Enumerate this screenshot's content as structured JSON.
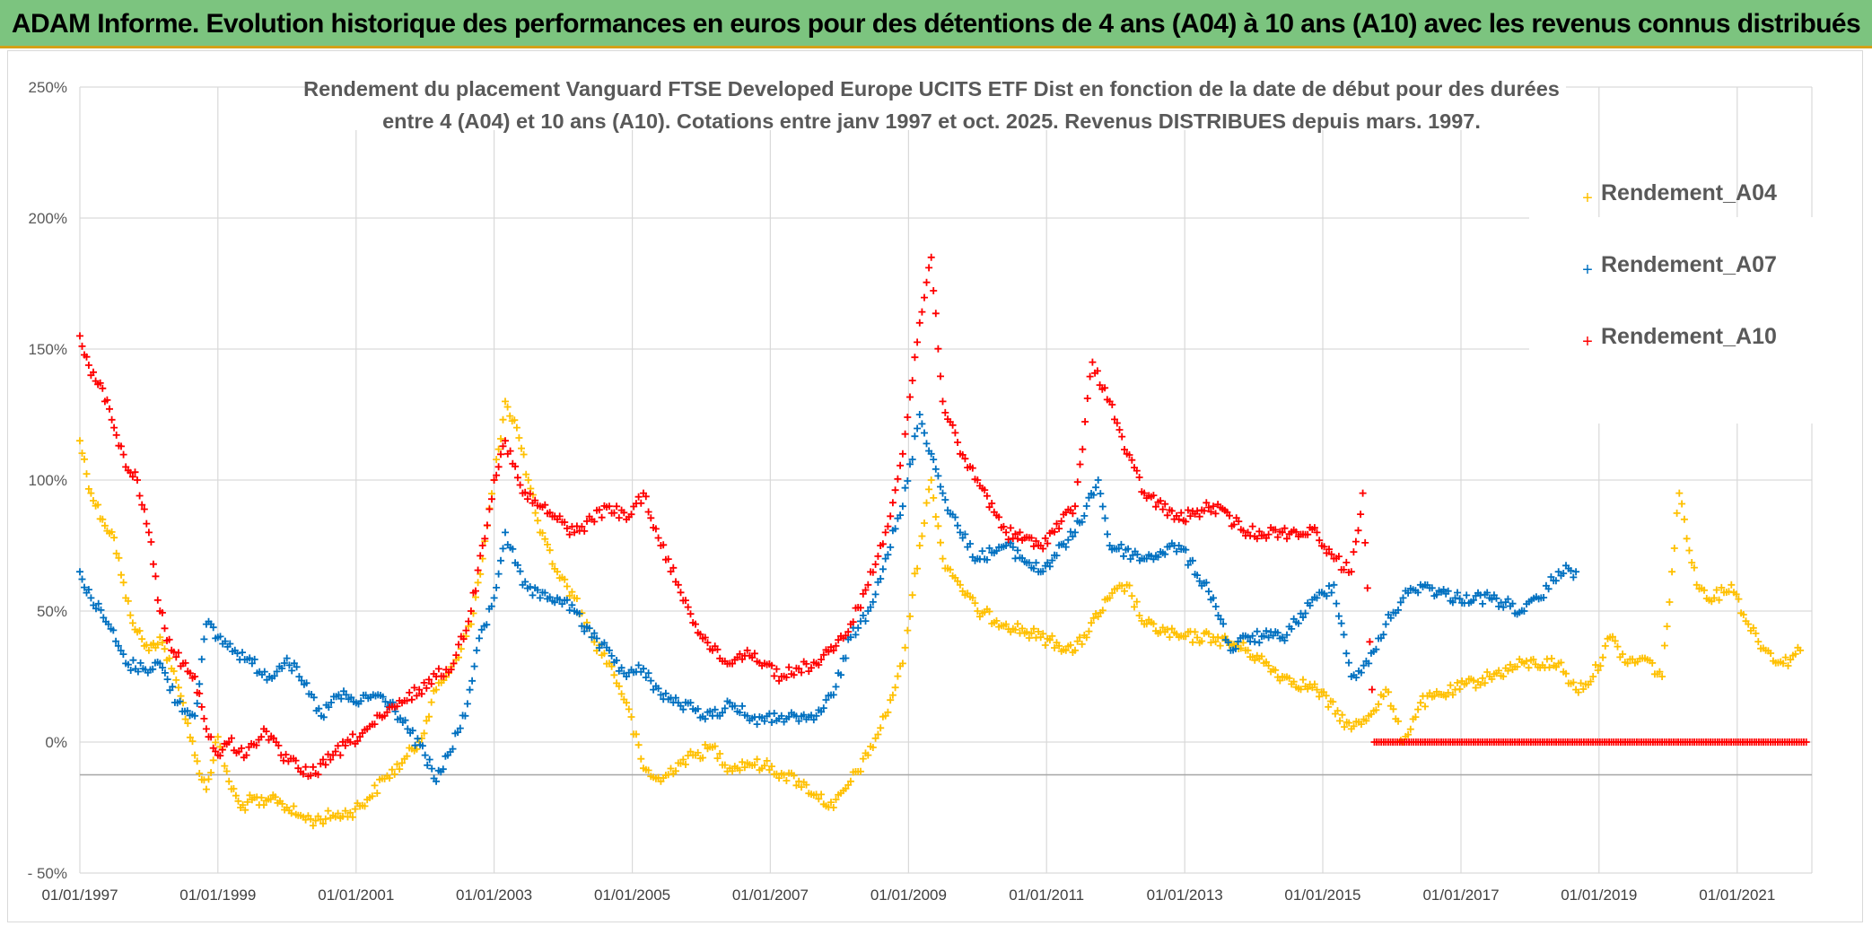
{
  "header": {
    "title": "ADAM Informe. Evolution historique des performances en euros pour des détentions de 4 ans (A04) à 10 ans (A10) avec les revenus connus distribués"
  },
  "chart_data": {
    "type": "scatter",
    "subtitle_lines": [
      "Rendement du placement Vanguard FTSE Developed Europe UCITS ETF Dist en fonction de la date de début pour des durées",
      "entre 4 (A04) et 10 ans (A10). Cotations entre janv 1997 et oct. 2025. Revenus DISTRIBUES depuis mars. 1997."
    ],
    "xlabel": "",
    "ylabel": "",
    "x_range": [
      "1997-01-01",
      "2022-01-31"
    ],
    "ylim": [
      -50,
      250
    ],
    "y_ticks": [
      "250%",
      "200%",
      "150%",
      "100%",
      "50%",
      "0%",
      "- 50%"
    ],
    "x_ticks": [
      "01/01/1997",
      "01/01/1999",
      "01/01/2001",
      "01/01/2003",
      "01/01/2005",
      "01/01/2007",
      "01/01/2009",
      "01/01/2011",
      "01/01/2013",
      "01/01/2015",
      "01/01/2017",
      "01/01/2019",
      "01/01/2021"
    ],
    "grid": true,
    "marker": "+",
    "legend_position": "right",
    "series": [
      {
        "name": "Rendement_A04",
        "color": "#ffc000",
        "points": [
          [
            "1997-01-01",
            115
          ],
          [
            "1997-03-01",
            95
          ],
          [
            "1997-05-01",
            85
          ],
          [
            "1997-07-01",
            78
          ],
          [
            "1997-09-01",
            55
          ],
          [
            "1997-11-01",
            42
          ],
          [
            "1998-01-01",
            35
          ],
          [
            "1998-03-01",
            40
          ],
          [
            "1998-05-01",
            28
          ],
          [
            "1998-07-01",
            15
          ],
          [
            "1998-09-01",
            -5
          ],
          [
            "1998-11-01",
            -18
          ],
          [
            "1999-01-01",
            2
          ],
          [
            "1999-03-01",
            -15
          ],
          [
            "1999-05-01",
            -25
          ],
          [
            "1999-07-01",
            -22
          ],
          [
            "1999-09-01",
            -24
          ],
          [
            "1999-11-01",
            -21
          ],
          [
            "2000-01-01",
            -25
          ],
          [
            "2000-03-01",
            -28
          ],
          [
            "2000-06-01",
            -30
          ],
          [
            "2000-09-01",
            -28
          ],
          [
            "2000-12-01",
            -27
          ],
          [
            "2001-03-01",
            -22
          ],
          [
            "2001-06-01",
            -14
          ],
          [
            "2001-09-01",
            -8
          ],
          [
            "2001-12-01",
            0
          ],
          [
            "2002-03-01",
            20
          ],
          [
            "2002-06-01",
            30
          ],
          [
            "2002-09-01",
            45
          ],
          [
            "2002-11-01",
            70
          ],
          [
            "2003-01-01",
            100
          ],
          [
            "2003-03-01",
            130
          ],
          [
            "2003-05-01",
            120
          ],
          [
            "2003-07-01",
            100
          ],
          [
            "2003-09-01",
            80
          ],
          [
            "2003-12-01",
            65
          ],
          [
            "2004-03-01",
            55
          ],
          [
            "2004-06-01",
            40
          ],
          [
            "2004-09-01",
            30
          ],
          [
            "2004-12-01",
            15
          ],
          [
            "2005-03-01",
            -10
          ],
          [
            "2005-06-01",
            -15
          ],
          [
            "2005-09-01",
            -8
          ],
          [
            "2005-12-01",
            -5
          ],
          [
            "2006-03-01",
            -2
          ],
          [
            "2006-06-01",
            -10
          ],
          [
            "2006-09-01",
            -8
          ],
          [
            "2006-12-01",
            -9
          ],
          [
            "2007-03-01",
            -12
          ],
          [
            "2007-06-01",
            -15
          ],
          [
            "2007-09-01",
            -20
          ],
          [
            "2007-12-01",
            -25
          ],
          [
            "2008-03-01",
            -15
          ],
          [
            "2008-06-01",
            -5
          ],
          [
            "2008-09-01",
            10
          ],
          [
            "2008-12-01",
            30
          ],
          [
            "2009-03-01",
            75
          ],
          [
            "2009-05-01",
            100
          ],
          [
            "2009-07-01",
            70
          ],
          [
            "2009-10-01",
            60
          ],
          [
            "2010-01-01",
            50
          ],
          [
            "2010-06-01",
            45
          ],
          [
            "2010-12-01",
            40
          ],
          [
            "2011-06-01",
            35
          ],
          [
            "2011-12-01",
            55
          ],
          [
            "2012-03-01",
            60
          ],
          [
            "2012-06-01",
            45
          ],
          [
            "2012-12-01",
            40
          ],
          [
            "2013-06-01",
            40
          ],
          [
            "2013-12-01",
            35
          ],
          [
            "2014-06-01",
            25
          ],
          [
            "2014-12-01",
            20
          ],
          [
            "2015-06-01",
            5
          ],
          [
            "2015-09-01",
            10
          ],
          [
            "2015-12-01",
            20
          ],
          [
            "2016-03-01",
            0
          ],
          [
            "2016-06-01",
            15
          ],
          [
            "2016-12-01",
            20
          ],
          [
            "2017-06-01",
            25
          ],
          [
            "2017-12-01",
            30
          ],
          [
            "2018-06-01",
            30
          ],
          [
            "2018-09-01",
            20
          ],
          [
            "2018-12-01",
            25
          ],
          [
            "2019-03-01",
            40
          ],
          [
            "2019-06-01",
            30
          ],
          [
            "2019-09-01",
            32
          ],
          [
            "2019-12-01",
            25
          ],
          [
            "2020-03-01",
            95
          ],
          [
            "2020-06-01",
            60
          ],
          [
            "2020-09-01",
            55
          ],
          [
            "2020-12-01",
            60
          ],
          [
            "2021-03-01",
            45
          ],
          [
            "2021-06-01",
            35
          ],
          [
            "2021-09-01",
            30
          ],
          [
            "2021-12-01",
            35
          ]
        ]
      },
      {
        "name": "Rendement_A07",
        "color": "#0070c0",
        "points": [
          [
            "1997-01-01",
            65
          ],
          [
            "1997-03-01",
            55
          ],
          [
            "1997-06-01",
            45
          ],
          [
            "1997-09-01",
            30
          ],
          [
            "1997-12-01",
            28
          ],
          [
            "1998-03-01",
            30
          ],
          [
            "1998-06-01",
            15
          ],
          [
            "1998-09-01",
            10
          ],
          [
            "1998-11-01",
            45
          ],
          [
            "1999-01-01",
            40
          ],
          [
            "1999-04-01",
            35
          ],
          [
            "1999-07-01",
            30
          ],
          [
            "1999-10-01",
            25
          ],
          [
            "2000-01-01",
            32
          ],
          [
            "2000-04-01",
            22
          ],
          [
            "2000-07-01",
            10
          ],
          [
            "2000-10-01",
            18
          ],
          [
            "2001-01-01",
            15
          ],
          [
            "2001-04-01",
            18
          ],
          [
            "2001-07-01",
            15
          ],
          [
            "2001-10-01",
            5
          ],
          [
            "2002-01-01",
            -5
          ],
          [
            "2002-03-01",
            -15
          ],
          [
            "2002-05-01",
            -5
          ],
          [
            "2002-08-01",
            10
          ],
          [
            "2002-10-01",
            35
          ],
          [
            "2003-01-01",
            55
          ],
          [
            "2003-03-01",
            80
          ],
          [
            "2003-06-01",
            60
          ],
          [
            "2003-09-01",
            55
          ],
          [
            "2003-12-01",
            55
          ],
          [
            "2004-03-01",
            50
          ],
          [
            "2004-06-01",
            40
          ],
          [
            "2004-09-01",
            35
          ],
          [
            "2004-12-01",
            25
          ],
          [
            "2005-03-01",
            28
          ],
          [
            "2005-06-01",
            18
          ],
          [
            "2005-09-01",
            15
          ],
          [
            "2005-12-01",
            12
          ],
          [
            "2006-03-01",
            10
          ],
          [
            "2006-06-01",
            15
          ],
          [
            "2006-09-01",
            10
          ],
          [
            "2006-12-01",
            8
          ],
          [
            "2007-03-01",
            10
          ],
          [
            "2007-06-01",
            8
          ],
          [
            "2007-09-01",
            10
          ],
          [
            "2007-12-01",
            18
          ],
          [
            "2008-03-01",
            40
          ],
          [
            "2008-06-01",
            50
          ],
          [
            "2008-09-01",
            70
          ],
          [
            "2008-12-01",
            90
          ],
          [
            "2009-03-01",
            125
          ],
          [
            "2009-05-01",
            110
          ],
          [
            "2009-07-01",
            95
          ],
          [
            "2009-10-01",
            80
          ],
          [
            "2010-01-01",
            70
          ],
          [
            "2010-06-01",
            75
          ],
          [
            "2010-12-01",
            65
          ],
          [
            "2011-06-01",
            80
          ],
          [
            "2011-10-01",
            100
          ],
          [
            "2011-12-01",
            75
          ],
          [
            "2012-06-01",
            70
          ],
          [
            "2012-12-01",
            75
          ],
          [
            "2013-06-01",
            55
          ],
          [
            "2013-09-01",
            35
          ],
          [
            "2013-12-01",
            40
          ],
          [
            "2014-06-01",
            40
          ],
          [
            "2014-12-01",
            55
          ],
          [
            "2015-03-01",
            60
          ],
          [
            "2015-06-01",
            25
          ],
          [
            "2015-09-01",
            30
          ],
          [
            "2015-12-01",
            45
          ],
          [
            "2016-03-01",
            55
          ],
          [
            "2016-06-01",
            60
          ],
          [
            "2016-12-01",
            55
          ],
          [
            "2017-06-01",
            55
          ],
          [
            "2017-12-01",
            50
          ],
          [
            "2018-03-01",
            55
          ],
          [
            "2018-06-01",
            65
          ],
          [
            "2018-09-01",
            65
          ]
        ]
      },
      {
        "name": "Rendement_A10",
        "color": "#ff0000",
        "points": [
          [
            "1997-01-01",
            155
          ],
          [
            "1997-03-01",
            140
          ],
          [
            "1997-05-01",
            135
          ],
          [
            "1997-07-01",
            120
          ],
          [
            "1997-09-01",
            105
          ],
          [
            "1997-11-01",
            100
          ],
          [
            "1998-01-01",
            80
          ],
          [
            "1998-03-01",
            50
          ],
          [
            "1998-05-01",
            35
          ],
          [
            "1998-07-01",
            30
          ],
          [
            "1998-09-01",
            25
          ],
          [
            "1998-11-01",
            5
          ],
          [
            "1999-01-01",
            -5
          ],
          [
            "1999-03-01",
            0
          ],
          [
            "1999-06-01",
            -5
          ],
          [
            "1999-09-01",
            5
          ],
          [
            "1999-12-01",
            -5
          ],
          [
            "2000-03-01",
            -10
          ],
          [
            "2000-06-01",
            -12
          ],
          [
            "2000-09-01",
            -5
          ],
          [
            "2000-12-01",
            0
          ],
          [
            "2001-03-01",
            5
          ],
          [
            "2001-06-01",
            10
          ],
          [
            "2001-09-01",
            15
          ],
          [
            "2001-12-01",
            20
          ],
          [
            "2002-03-01",
            25
          ],
          [
            "2002-06-01",
            30
          ],
          [
            "2002-09-01",
            50
          ],
          [
            "2002-11-01",
            75
          ],
          [
            "2003-01-01",
            100
          ],
          [
            "2003-03-01",
            115
          ],
          [
            "2003-06-01",
            95
          ],
          [
            "2003-09-01",
            90
          ],
          [
            "2003-12-01",
            85
          ],
          [
            "2004-03-01",
            80
          ],
          [
            "2004-06-01",
            85
          ],
          [
            "2004-09-01",
            90
          ],
          [
            "2004-12-01",
            85
          ],
          [
            "2005-03-01",
            95
          ],
          [
            "2005-06-01",
            75
          ],
          [
            "2005-09-01",
            60
          ],
          [
            "2005-12-01",
            45
          ],
          [
            "2006-03-01",
            35
          ],
          [
            "2006-06-01",
            30
          ],
          [
            "2006-09-01",
            35
          ],
          [
            "2006-12-01",
            30
          ],
          [
            "2007-03-01",
            25
          ],
          [
            "2007-06-01",
            28
          ],
          [
            "2007-09-01",
            30
          ],
          [
            "2007-12-01",
            35
          ],
          [
            "2008-03-01",
            45
          ],
          [
            "2008-06-01",
            60
          ],
          [
            "2008-09-01",
            80
          ],
          [
            "2008-12-01",
            110
          ],
          [
            "2009-03-01",
            160
          ],
          [
            "2009-05-01",
            185
          ],
          [
            "2009-07-01",
            130
          ],
          [
            "2009-10-01",
            110
          ],
          [
            "2010-01-01",
            100
          ],
          [
            "2010-06-01",
            80
          ],
          [
            "2010-12-01",
            75
          ],
          [
            "2011-06-01",
            90
          ],
          [
            "2011-09-01",
            145
          ],
          [
            "2011-12-01",
            130
          ],
          [
            "2012-03-01",
            110
          ],
          [
            "2012-06-01",
            95
          ],
          [
            "2012-12-01",
            85
          ],
          [
            "2013-06-01",
            90
          ],
          [
            "2013-12-01",
            80
          ],
          [
            "2014-06-01",
            80
          ],
          [
            "2014-12-01",
            80
          ],
          [
            "2015-03-01",
            70
          ],
          [
            "2015-06-01",
            65
          ],
          [
            "2015-08-01",
            95
          ],
          [
            "2015-10-01",
            0
          ],
          [
            "2016-06-01",
            0
          ],
          [
            "2017-06-01",
            0
          ],
          [
            "2018-06-01",
            0
          ],
          [
            "2019-06-01",
            0
          ],
          [
            "2020-06-01",
            0
          ],
          [
            "2021-06-01",
            0
          ],
          [
            "2022-01-01",
            0
          ]
        ]
      }
    ]
  }
}
